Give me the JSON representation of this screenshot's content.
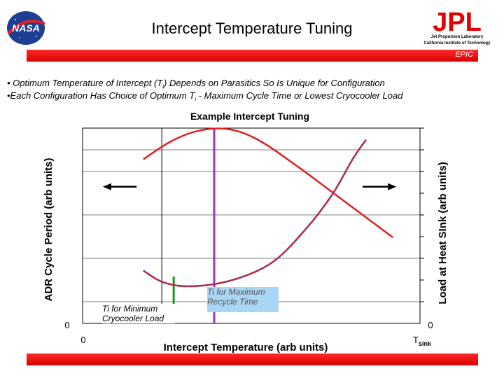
{
  "header": {
    "title": "Intercept Temperature Tuning",
    "epic_label": "EPIC",
    "logos": {
      "nasa": "NASA",
      "jpl": "JPL",
      "jpl_line1": "Jet Propulsion Laboratory",
      "jpl_line2": "California Institute of Technology"
    }
  },
  "bullets": {
    "b1_prefix": "• Optimum Temperature of Intercept (T",
    "b1_sub": "i",
    "b1_suffix": ") Depends on Parasitics So Is Unique for Configuration",
    "b2_prefix": "•Each Configuration Has Choice of Optimum T",
    "b2_sub": "i",
    "b2_suffix": "  - Maximum Cycle Time or Lowest Cryocooler Load"
  },
  "notes": {
    "left": "Ti for Minimum Cryocooler Load",
    "right": "Ti for Maximum Recycle Time"
  },
  "colors": {
    "red_bar": "#e00000",
    "cycle_curve": "#e02020",
    "load_curve": "#e02020",
    "load_curve_dash": "#4a4aa8",
    "min_load_marker": "#1a9a1a",
    "max_recycle_marker": "#9933cc"
  },
  "chart_data": {
    "type": "line",
    "title": "Example Intercept Tuning",
    "xlabel": "Intercept Temperature (arb units)",
    "ylabel": "ADR Cycle Period (arb units)",
    "y2label": "Load at Heat SInk (arb units)",
    "xlim": [
      0,
      10
    ],
    "ylim": [
      0,
      10
    ],
    "x_tick_labels": {
      "start": "0",
      "end_main": "T",
      "end_sub": "sink"
    },
    "y_tick_label": "0",
    "y2_tick_label": "0",
    "grid": true,
    "series": [
      {
        "points": [
          [
            1.8,
            8.4
          ],
          [
            2.6,
            9.3
          ],
          [
            3.4,
            9.85
          ],
          [
            4.3,
            9.95
          ],
          [
            5.2,
            9.4
          ],
          [
            6.4,
            8.0
          ],
          [
            7.8,
            6.2
          ],
          [
            9.2,
            4.4
          ]
        ]
      },
      {
        "points": [
          [
            1.8,
            2.7
          ],
          [
            2.4,
            2.1
          ],
          [
            3.2,
            1.9
          ],
          [
            4.4,
            2.2
          ],
          [
            5.6,
            3.1
          ],
          [
            6.6,
            4.8
          ],
          [
            7.4,
            6.6
          ],
          [
            8.0,
            8.4
          ],
          [
            8.4,
            9.4
          ]
        ]
      }
    ],
    "markers": [
      {
        "x": 2.7,
        "from": 0,
        "to": 2.4
      },
      {
        "x": 3.9,
        "from": 0,
        "to": 9.95
      }
    ],
    "arrows": [
      {
        "x_from": 1.6,
        "x_to": 0.6,
        "y": 7.0
      },
      {
        "x_from": 8.3,
        "x_to": 9.3,
        "y": 7.0
      }
    ]
  }
}
